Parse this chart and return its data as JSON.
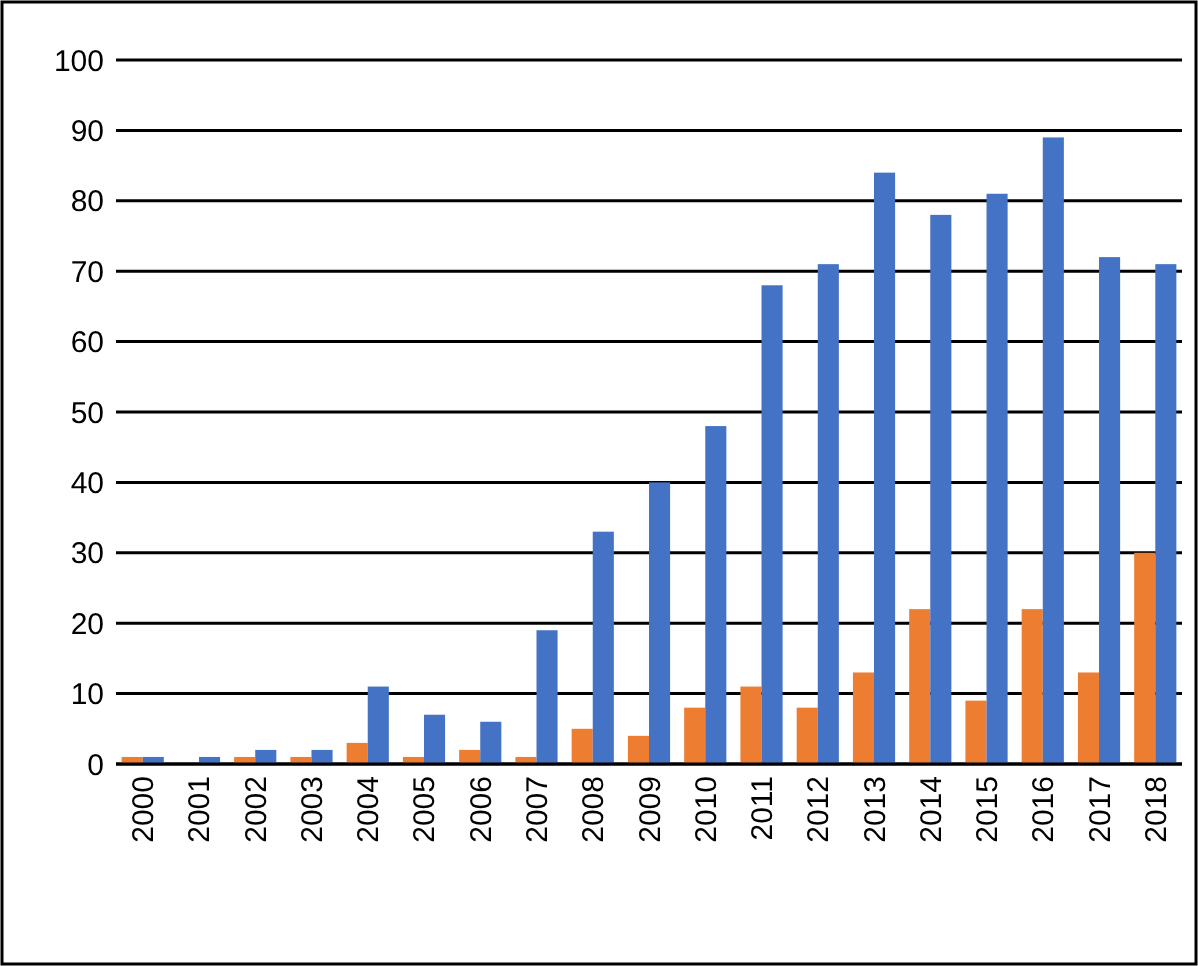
{
  "chart_data": {
    "type": "bar",
    "categories": [
      "2000",
      "2001",
      "2002",
      "2003",
      "2004",
      "2005",
      "2006",
      "2007",
      "2008",
      "2009",
      "2010",
      "2011",
      "2012",
      "2013",
      "2014",
      "2015",
      "2016",
      "2017",
      "2018"
    ],
    "series": [
      {
        "color": "#ed7d31",
        "values": [
          1,
          0,
          1,
          1,
          3,
          1,
          2,
          1,
          5,
          4,
          8,
          11,
          8,
          13,
          22,
          9,
          22,
          13,
          30
        ]
      },
      {
        "color": "#4472c4",
        "values": [
          1,
          1,
          2,
          2,
          11,
          7,
          6,
          19,
          33,
          40,
          48,
          68,
          71,
          84,
          78,
          81,
          89,
          72,
          71
        ]
      }
    ],
    "ylim": [
      0,
      100
    ],
    "yticks": [
      0,
      10,
      20,
      30,
      40,
      50,
      60,
      70,
      80,
      90,
      100
    ],
    "grid": "y"
  }
}
